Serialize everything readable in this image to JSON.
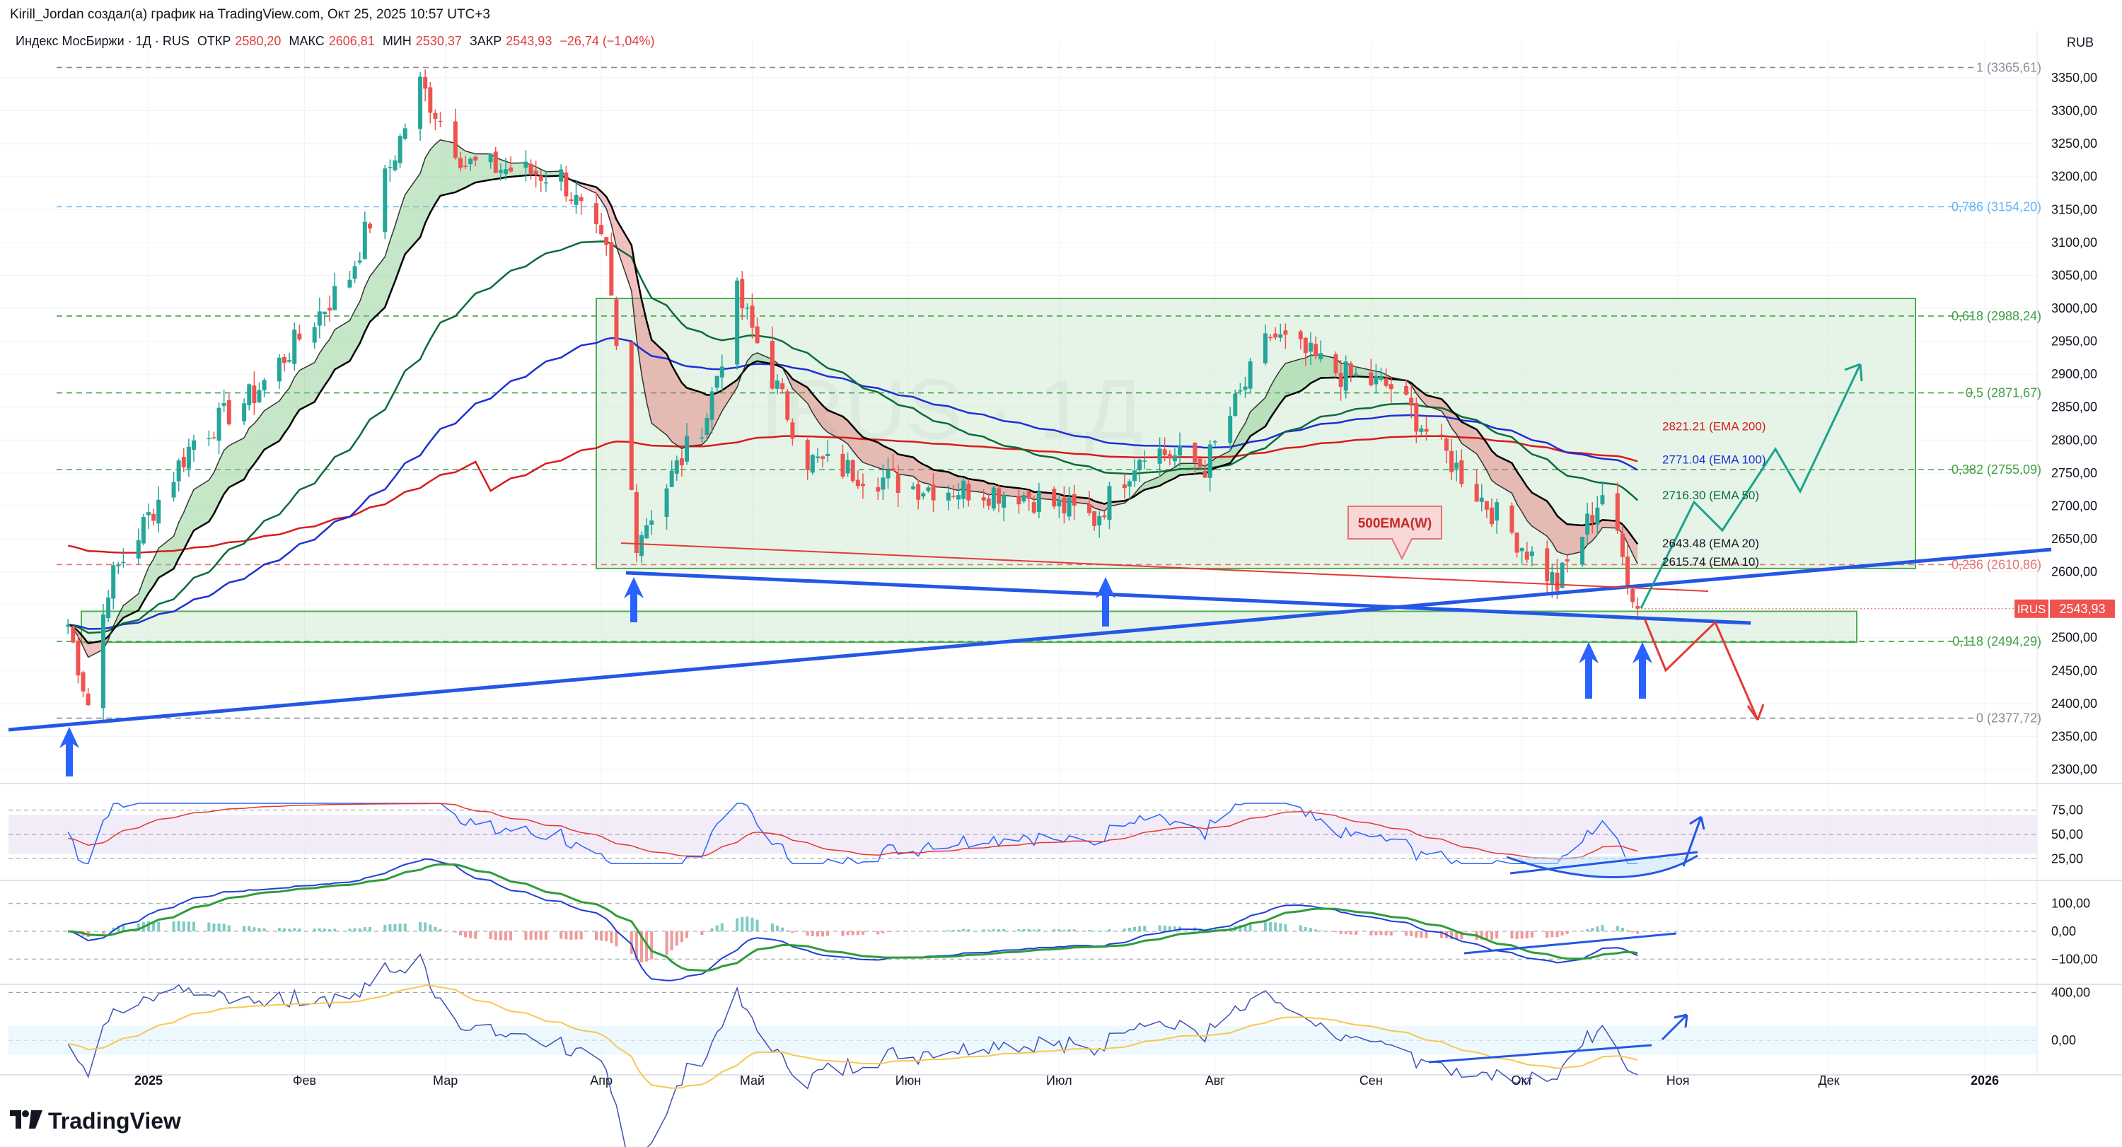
{
  "header": {
    "author_line": "Kirill_Jordan создал(а) график на TradingView.com, Окт 25, 2025 10:57 UTC+3"
  },
  "legend": {
    "instrument": "Индекс МосБиржи · 1Д · RUS",
    "open_label": "ОТКР",
    "open_value": "2580,20",
    "high_label": "МАКС",
    "high_value": "2606,81",
    "low_label": "МИН",
    "low_value": "2530,37",
    "close_label": "ЗАКР",
    "close_value": "2543,93",
    "change": "−26,74 (−1,04%)"
  },
  "currency": "RUB",
  "brand": "TradingView",
  "watermark": "IRUS · 1Д",
  "colors": {
    "up": "#26a69a",
    "down": "#ef5350",
    "ema10": "#000000",
    "ema20": "#000000",
    "ema50": "#0b6b3a",
    "ema100": "#1f2fd6",
    "ema200": "#d81b1b",
    "trend_blue": "#2457e6",
    "arrow_blue": "#2962ff",
    "zone_fill": "#c8e6c9",
    "zone_border": "#4caf50",
    "fib_green": "#43a047",
    "fib_blue": "#64b5f6",
    "fib_red": "#e57373",
    "rsi_band": "#ede7f6",
    "price_tag": "#ef5350"
  },
  "chart_data": {
    "type": "candlestick",
    "title": "Индекс МосБиржи · 1Д · RUS",
    "timeframe": "1Д",
    "currency": "RUB",
    "ylim": [
      2290,
      3395
    ],
    "y_ticks": [
      "3350,00",
      "3300,00",
      "3250,00",
      "3200,00",
      "3150,00",
      "3100,00",
      "3050,00",
      "3000,00",
      "2950,00",
      "2900,00",
      "2850,00",
      "2800,00",
      "2750,00",
      "2700,00",
      "2650,00",
      "2600,00",
      "2550,00",
      "2500,00",
      "2450,00",
      "2400,00",
      "2350,00",
      "2300,00"
    ],
    "x_ticks": [
      "2025",
      "Фев",
      "Мар",
      "Апр",
      "Май",
      "Июн",
      "Июл",
      "Авг",
      "Сен",
      "Окт",
      "Ноя",
      "Дек",
      "2026"
    ],
    "last_price": {
      "label": "IRUS",
      "value": "2543,93"
    },
    "ohlc_key_points": [
      {
        "date": "2024-12-16",
        "close": 2520
      },
      {
        "date": "2024-12-20",
        "close": 2400
      },
      {
        "date": "2024-12-24",
        "close": 2580
      },
      {
        "date": "2025-01-10",
        "close": 2800
      },
      {
        "date": "2025-01-22",
        "close": 2870
      },
      {
        "date": "2025-02-10",
        "close": 3050
      },
      {
        "date": "2025-02-24",
        "close": 3340
      },
      {
        "date": "2025-03-05",
        "close": 3220
      },
      {
        "date": "2025-03-24",
        "close": 3200
      },
      {
        "date": "2025-04-02",
        "close": 3080
      },
      {
        "date": "2025-04-08",
        "close": 2650
      },
      {
        "date": "2025-04-22",
        "close": 2840
      },
      {
        "date": "2025-04-28",
        "close": 3020
      },
      {
        "date": "2025-05-12",
        "close": 2770
      },
      {
        "date": "2025-06-02",
        "close": 2730
      },
      {
        "date": "2025-06-23",
        "close": 2720
      },
      {
        "date": "2025-07-08",
        "close": 2680
      },
      {
        "date": "2025-07-18",
        "close": 2790
      },
      {
        "date": "2025-07-30",
        "close": 2760
      },
      {
        "date": "2025-08-12",
        "close": 2960
      },
      {
        "date": "2025-08-26",
        "close": 2900
      },
      {
        "date": "2025-09-05",
        "close": 2880
      },
      {
        "date": "2025-09-22",
        "close": 2720
      },
      {
        "date": "2025-10-08",
        "close": 2580
      },
      {
        "date": "2025-10-17",
        "close": 2720
      },
      {
        "date": "2025-10-24",
        "close": 2543.93
      }
    ],
    "series": [
      {
        "name": "EMA 200",
        "last": "2821.21"
      },
      {
        "name": "EMA 100",
        "last": "2771.04"
      },
      {
        "name": "EMA 50",
        "last": "2716.30"
      },
      {
        "name": "EMA 20",
        "last": "2643.48"
      },
      {
        "name": "EMA 10",
        "last": "2615.74"
      }
    ],
    "fib_levels": [
      {
        "label": "1 (3365,61)",
        "value": 3365.61
      },
      {
        "label": "0,786 (3154,20)",
        "value": 3154.2
      },
      {
        "label": "0,618 (2988,24)",
        "value": 2988.24
      },
      {
        "label": "0,5 (2871,67)",
        "value": 2871.67
      },
      {
        "label": "0,382 (2755,09)",
        "value": 2755.09
      },
      {
        "label": "0,236 (2610,86)",
        "value": 2610.86
      },
      {
        "label": "0,118 (2494,29)",
        "value": 2494.29
      },
      {
        "label": "0 (2377,72)",
        "value": 2377.72
      }
    ],
    "annotations": [
      {
        "text": "500EMA(W)"
      }
    ],
    "indicators": [
      {
        "name": "RSI",
        "ticks": [
          "75,00",
          "50,00",
          "25,00"
        ]
      },
      {
        "name": "MACD",
        "ticks": [
          "100,00",
          "0,00",
          "−100,00"
        ]
      },
      {
        "name": "Oscillator",
        "ticks": [
          "400,00",
          "0,00"
        ]
      }
    ]
  }
}
